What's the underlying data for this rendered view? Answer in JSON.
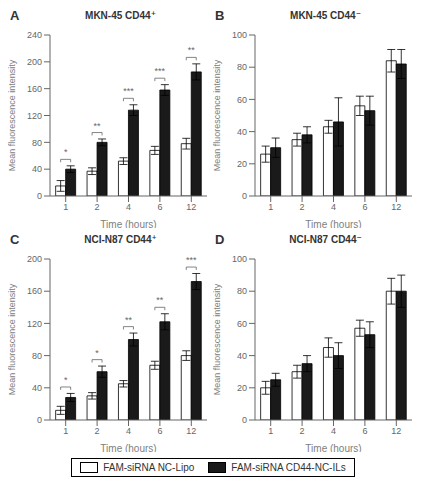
{
  "chart_data": [
    {
      "type": "bar",
      "title": "MKN-45 CD44⁺",
      "xlabel": "Time (hours)",
      "ylabel": "Mean fluorescence intensity",
      "categories": [
        "1",
        "2",
        "4",
        "6",
        "12"
      ],
      "series": [
        {
          "name": "FAM-siRNA NC-Lipo",
          "color": "#ffffff",
          "values": [
            15,
            37,
            52,
            68,
            78
          ],
          "error": [
            8,
            5,
            5,
            6,
            8
          ]
        },
        {
          "name": "FAM-siRNA CD44-NC-ILs",
          "color": "#1a1a1a",
          "values": [
            40,
            80,
            128,
            158,
            185
          ],
          "error": [
            5,
            5,
            8,
            8,
            12
          ]
        }
      ],
      "ylim": [
        0,
        240
      ],
      "yticks": [
        0,
        40,
        80,
        120,
        160,
        200,
        240
      ],
      "grid": false,
      "legend": "bottom",
      "annotations": [
        {
          "text": "A"
        },
        {
          "category": "1",
          "text": "*"
        },
        {
          "category": "2",
          "text": "**"
        },
        {
          "category": "4",
          "text": "***"
        },
        {
          "category": "6",
          "text": "***"
        },
        {
          "category": "12",
          "text": "**"
        }
      ]
    },
    {
      "type": "bar",
      "title": "MKN-45 CD44⁻",
      "xlabel": "Time (hours)",
      "ylabel": "Mean fluorescence intensity",
      "categories": [
        "1",
        "2",
        "4",
        "6",
        "12"
      ],
      "series": [
        {
          "name": "FAM-siRNA NC-Lipo",
          "color": "#ffffff",
          "values": [
            26,
            35,
            43,
            56,
            84
          ],
          "error": [
            5,
            4,
            4,
            6,
            7
          ]
        },
        {
          "name": "FAM-siRNA CD44-NC-ILs",
          "color": "#1a1a1a",
          "values": [
            30,
            38,
            46,
            53,
            82
          ],
          "error": [
            6,
            5,
            15,
            9,
            9
          ]
        }
      ],
      "ylim": [
        0,
        100
      ],
      "yticks": [
        0,
        20,
        40,
        60,
        80,
        100
      ],
      "grid": false,
      "legend": "bottom",
      "annotations": [
        {
          "text": "B"
        }
      ]
    },
    {
      "type": "bar",
      "title": "NCI-N87 CD44⁺",
      "xlabel": "Time (hours)",
      "ylabel": "Mean fluorescence intensity",
      "categories": [
        "1",
        "2",
        "4",
        "6",
        "12"
      ],
      "series": [
        {
          "name": "FAM-siRNA NC-Lipo",
          "color": "#ffffff",
          "values": [
            12,
            30,
            45,
            68,
            80
          ],
          "error": [
            5,
            4,
            4,
            5,
            6
          ]
        },
        {
          "name": "FAM-siRNA CD44-NC-ILs",
          "color": "#1a1a1a",
          "values": [
            28,
            60,
            100,
            122,
            172
          ],
          "error": [
            5,
            7,
            8,
            10,
            10
          ]
        }
      ],
      "ylim": [
        0,
        200
      ],
      "yticks": [
        0,
        40,
        80,
        120,
        160,
        200
      ],
      "grid": false,
      "legend": "bottom",
      "annotations": [
        {
          "text": "C"
        },
        {
          "category": "1",
          "text": "*"
        },
        {
          "category": "2",
          "text": "*"
        },
        {
          "category": "4",
          "text": "**"
        },
        {
          "category": "6",
          "text": "**"
        },
        {
          "category": "12",
          "text": "***"
        }
      ]
    },
    {
      "type": "bar",
      "title": "NCI-N87 CD44⁻",
      "xlabel": "Time (hours)",
      "ylabel": "Mean fluorescence intensity",
      "categories": [
        "1",
        "2",
        "4",
        "6",
        "12"
      ],
      "series": [
        {
          "name": "FAM-siRNA NC-Lipo",
          "color": "#ffffff",
          "values": [
            20,
            30,
            45,
            57,
            80
          ],
          "error": [
            4,
            4,
            6,
            5,
            8
          ]
        },
        {
          "name": "FAM-siRNA CD44-NC-ILs",
          "color": "#1a1a1a",
          "values": [
            25,
            35,
            40,
            53,
            80
          ],
          "error": [
            4,
            5,
            8,
            8,
            10
          ]
        }
      ],
      "ylim": [
        0,
        100
      ],
      "yticks": [
        0,
        20,
        40,
        60,
        80,
        100
      ],
      "grid": false,
      "legend": "bottom",
      "annotations": [
        {
          "text": "D"
        }
      ]
    }
  ]
}
